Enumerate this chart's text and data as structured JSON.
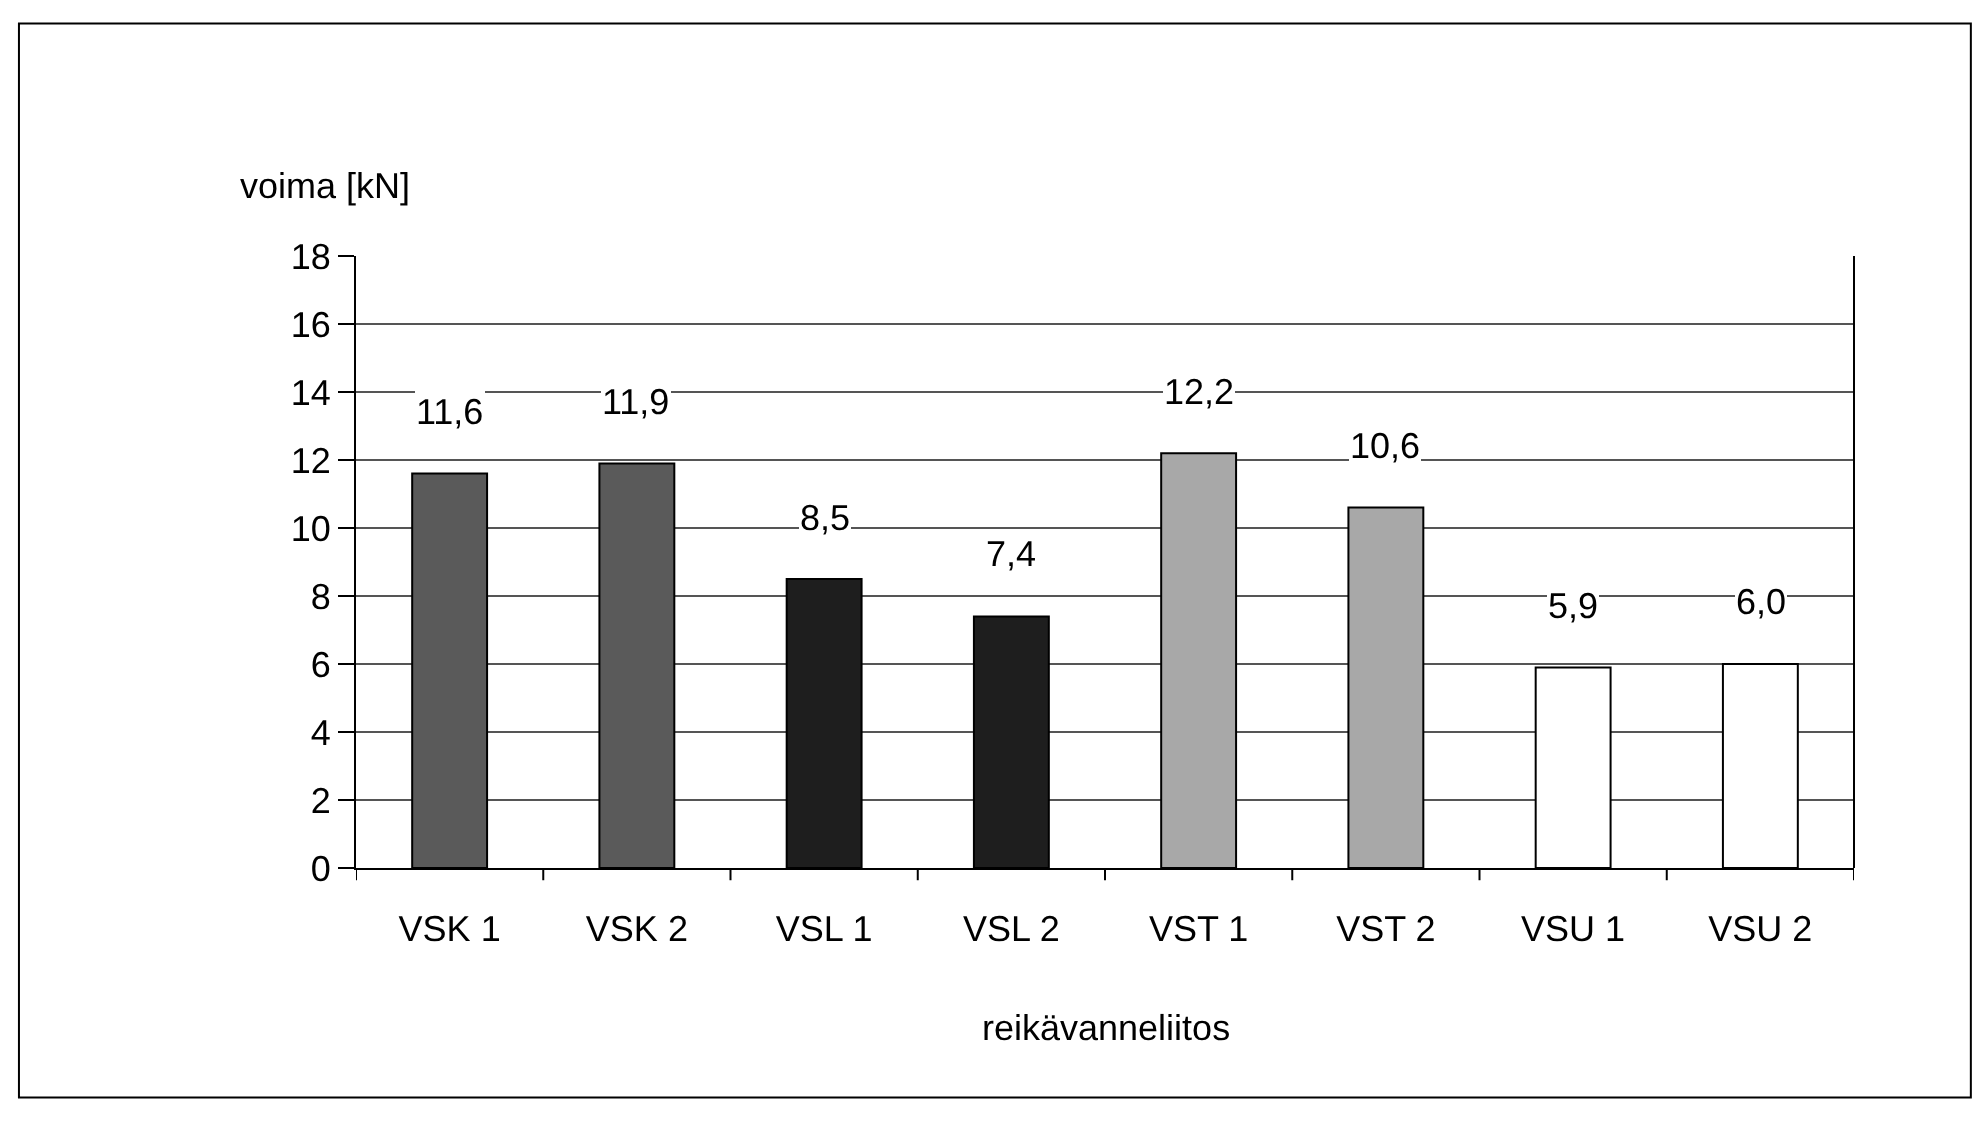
{
  "chart_data": {
    "type": "bar",
    "categories": [
      "VSK 1",
      "VSK 2",
      "VSL 1",
      "VSL 2",
      "VST 1",
      "VST 2",
      "VSU 1",
      "VSU 2"
    ],
    "values": [
      11.6,
      11.9,
      8.5,
      7.4,
      12.2,
      10.6,
      5.9,
      6.0
    ],
    "value_labels": [
      "11,6",
      "11,9",
      "8,5",
      "7,4",
      "12,2",
      "10,6",
      "5,9",
      "6,0"
    ],
    "colors": [
      "#5a5a5a",
      "#5a5a5a",
      "#1e1e1e",
      "#1e1e1e",
      "#a8a8a8",
      "#a8a8a8",
      "#ffffff",
      "#ffffff"
    ],
    "ylabel": "voima [kN]",
    "xlabel": "reikävanneliitos",
    "ylim": [
      0,
      18
    ],
    "yticks": [
      0,
      2,
      4,
      6,
      8,
      10,
      12,
      14,
      16,
      18
    ],
    "grid": "y"
  }
}
